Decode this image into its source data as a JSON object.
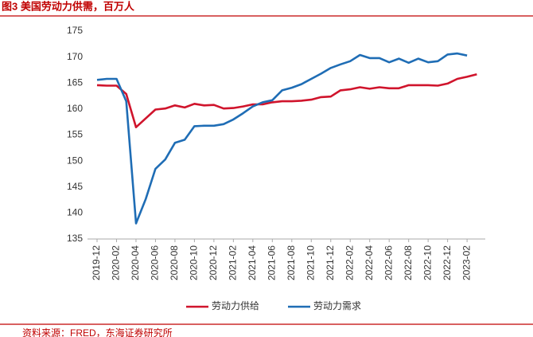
{
  "chart_data": {
    "type": "line",
    "title": "图3 美国劳动力供需，百万人",
    "source": "资料来源：FRED，东海证券研究所",
    "categories": [
      "2019-12",
      null,
      "2020-02",
      null,
      "2020-04",
      null,
      "2020-06",
      null,
      "2020-08",
      null,
      "2020-10",
      null,
      "2020-12",
      null,
      "2021-02",
      null,
      "2021-04",
      null,
      "2021-06",
      null,
      "2021-08",
      null,
      "2021-10",
      null,
      "2021-12",
      null,
      "2022-02",
      null,
      "2022-04",
      null,
      "2022-06",
      null,
      "2022-08",
      null,
      "2022-10",
      null,
      "2022-12",
      null,
      "2023-02",
      null
    ],
    "series": [
      {
        "name": "劳动力供给",
        "color": "#d0142c",
        "values": [
          164.6,
          164.5,
          164.5,
          162.9,
          156.5,
          158.2,
          159.9,
          160.1,
          160.7,
          160.3,
          161.0,
          160.7,
          160.8,
          160.1,
          160.2,
          160.5,
          160.9,
          160.9,
          161.3,
          161.5,
          161.5,
          161.6,
          161.8,
          162.3,
          162.4,
          163.6,
          163.8,
          164.2,
          163.9,
          164.2,
          164.0,
          164.0,
          164.6,
          164.6,
          164.6,
          164.5,
          164.9,
          165.8,
          166.2,
          166.7
        ]
      },
      {
        "name": "劳动力需求",
        "color": "#1f6db5",
        "values": [
          165.6,
          165.8,
          165.8,
          161.5,
          138.0,
          142.7,
          148.5,
          150.3,
          153.5,
          154.1,
          156.7,
          156.8,
          156.8,
          157.1,
          158.0,
          159.2,
          160.5,
          161.3,
          161.7,
          163.6,
          164.1,
          164.8,
          165.8,
          166.8,
          167.9,
          168.6,
          169.2,
          170.4,
          169.8,
          169.8,
          169.0,
          169.7,
          168.9,
          169.7,
          169.0,
          169.2,
          170.5,
          170.7,
          170.3,
          null
        ]
      }
    ],
    "ylim": [
      135,
      175
    ],
    "yticks": [
      135,
      140,
      145,
      150,
      155,
      160,
      165,
      170,
      175
    ],
    "grid": false
  }
}
